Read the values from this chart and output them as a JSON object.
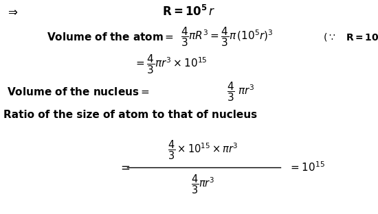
{
  "bg_color": "#ffffff",
  "text_color": "#000000",
  "fig_width": 5.5,
  "fig_height": 3.12,
  "dpi": 100
}
